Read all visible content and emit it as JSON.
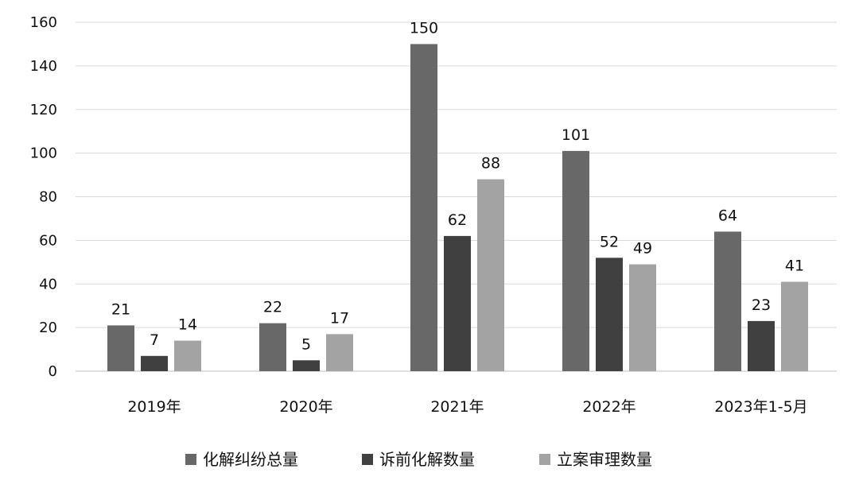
{
  "chart_data": {
    "type": "bar",
    "categories": [
      "2019年",
      "2020年",
      "2021年",
      "2022年",
      "2023年1-5月"
    ],
    "series": [
      {
        "name": "化解纠纷总量",
        "values": [
          21,
          22,
          150,
          101,
          64
        ],
        "color": "#686868"
      },
      {
        "name": "诉前化解数量",
        "values": [
          7,
          5,
          62,
          52,
          23
        ],
        "color": "#404040"
      },
      {
        "name": "立案审理数量",
        "values": [
          14,
          17,
          88,
          49,
          41
        ],
        "color": "#a3a3a3"
      }
    ],
    "ylim": [
      0,
      160
    ],
    "yticks": [
      0,
      20,
      40,
      60,
      80,
      100,
      120,
      140,
      160
    ],
    "grid": true,
    "legend_position": "bottom",
    "data_labels": true
  }
}
